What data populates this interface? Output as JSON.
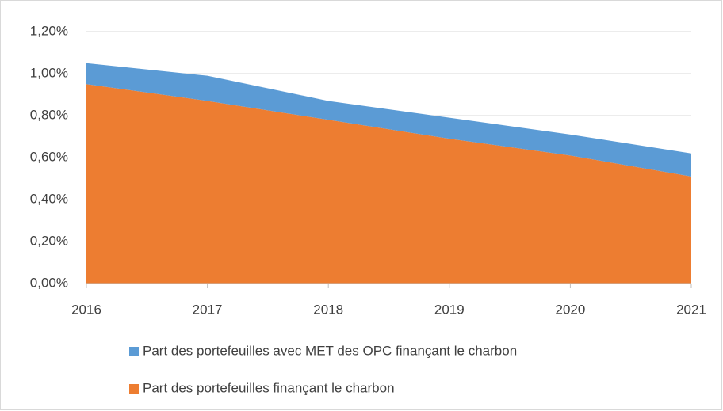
{
  "chart_data": {
    "type": "stacked_area",
    "x": [
      2016,
      2017,
      2018,
      2019,
      2020,
      2021
    ],
    "xlim": [
      2016,
      2021
    ],
    "xticks": [
      2016,
      2017,
      2018,
      2019,
      2020,
      2021
    ],
    "ylim": [
      0,
      1.2
    ],
    "yticks": [
      {
        "value": 0,
        "label": "0,00%"
      },
      {
        "value": 0.2,
        "label": "0,20%"
      },
      {
        "value": 0.4,
        "label": "0,40%"
      },
      {
        "value": 0.6,
        "label": "0,60%"
      },
      {
        "value": 0.8,
        "label": "0,80%"
      },
      {
        "value": 1.0,
        "label": "1,00%"
      },
      {
        "value": 1.2,
        "label": "1,20%"
      }
    ],
    "grid": true,
    "series": [
      {
        "name": "Part des portefeuilles avec MET des OPC finançant le charbon",
        "color": "#5b9bd5",
        "values": [
          0.1,
          0.12,
          0.09,
          0.1,
          0.1,
          0.11
        ]
      },
      {
        "name": "Part des portefeuilles finançant le charbon",
        "color": "#ed7d31",
        "values": [
          0.95,
          0.87,
          0.78,
          0.69,
          0.61,
          0.51
        ]
      }
    ]
  }
}
